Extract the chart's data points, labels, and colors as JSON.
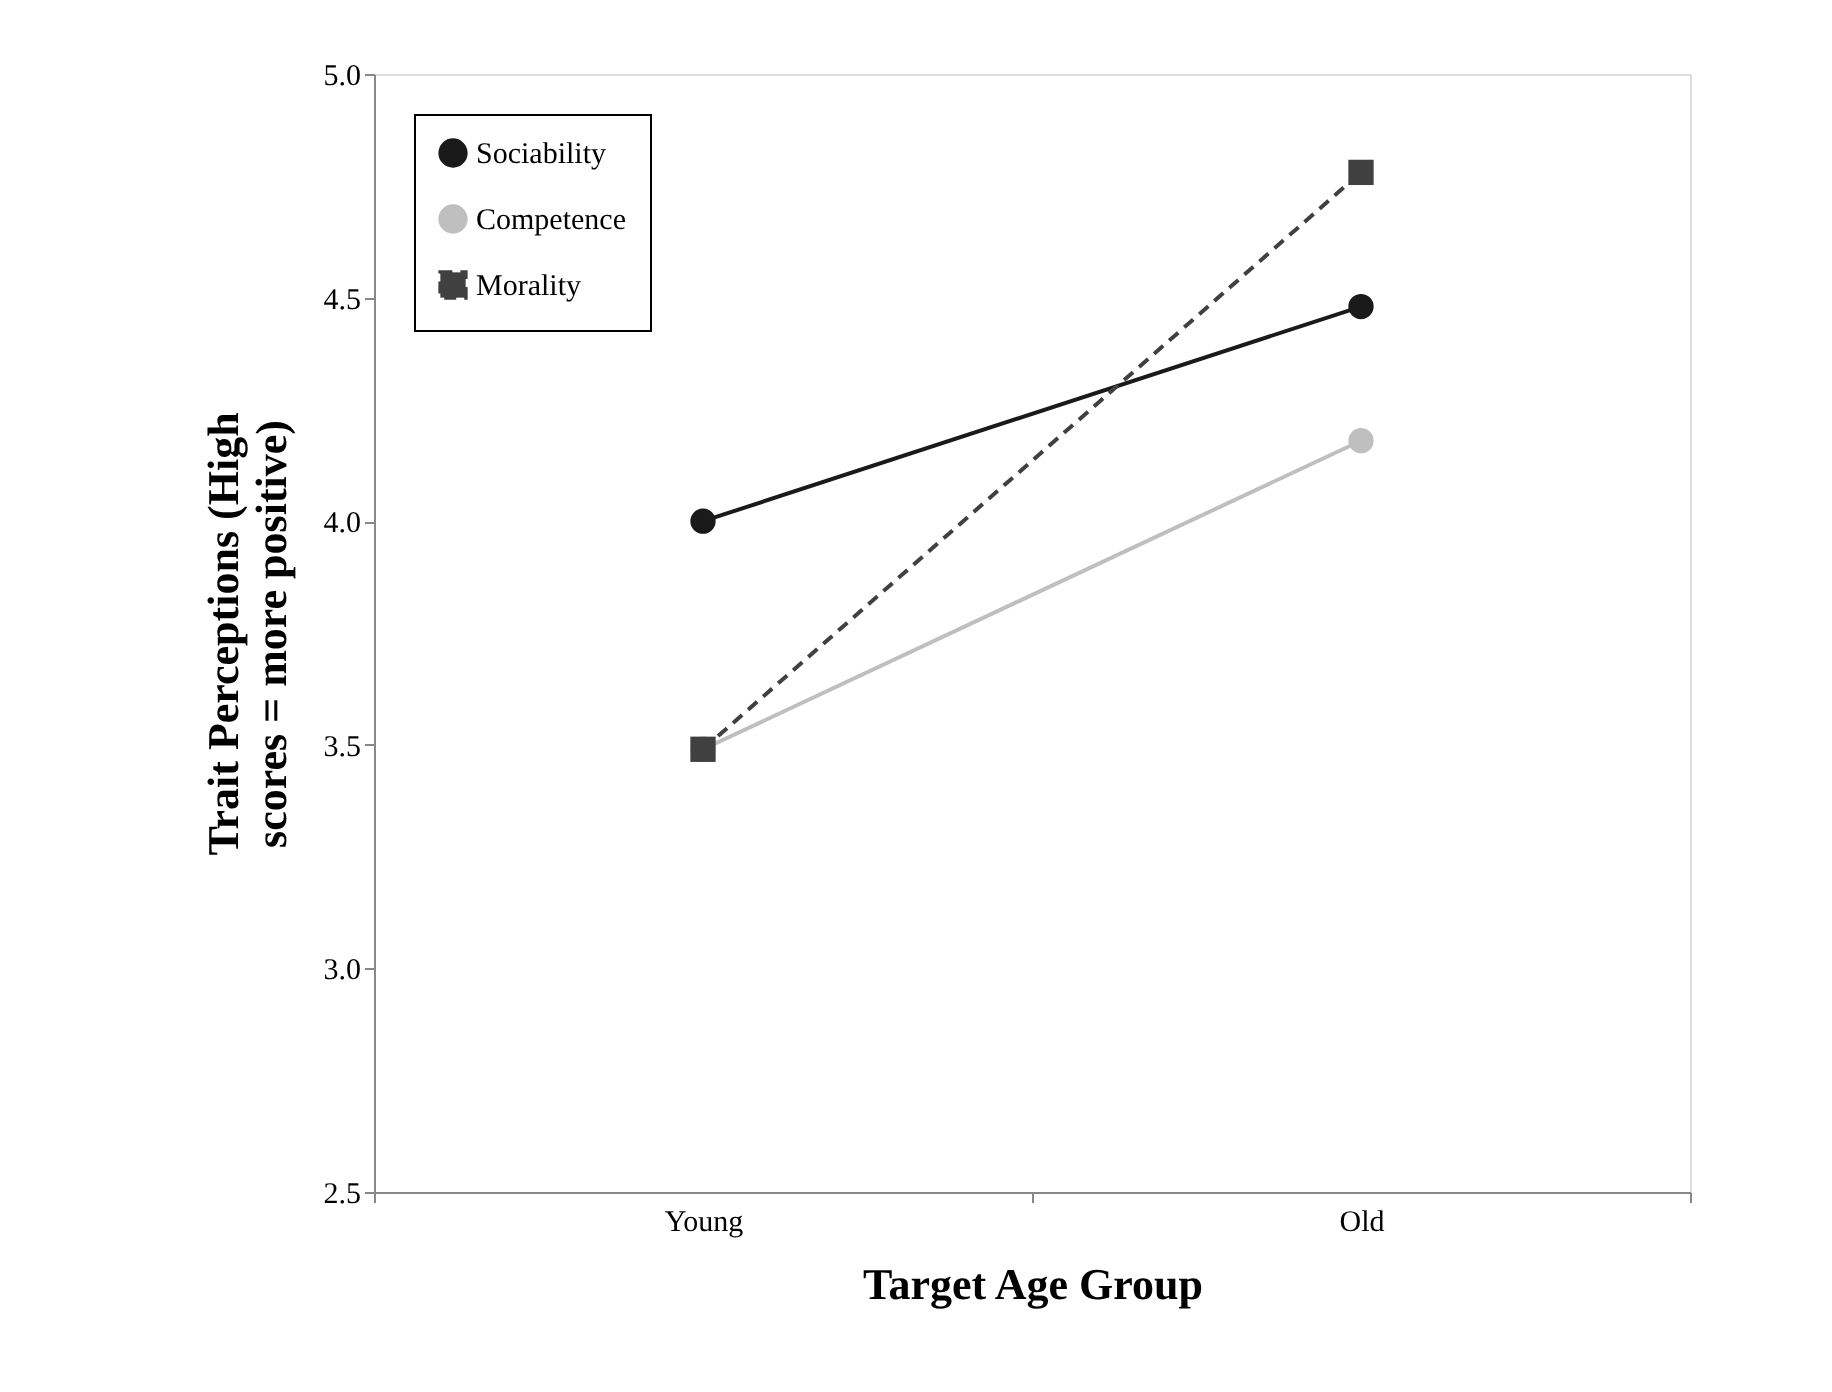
{
  "chart_data": {
    "type": "line",
    "xlabel": "Target Age Group",
    "ylabel": "Trait Perceptions (High scores = more positive)",
    "categories": [
      "Young",
      "Old"
    ],
    "series": [
      {
        "name": "Sociability",
        "color": "#1a1a1a",
        "values": [
          4.0,
          4.48
        ],
        "marker": "circle",
        "line_style": "solid"
      },
      {
        "name": "Competence",
        "color": "#bfbfbf",
        "values": [
          3.49,
          4.18
        ],
        "marker": "circle",
        "line_style": "solid"
      },
      {
        "name": "Morality",
        "color": "#404040",
        "values": [
          3.49,
          4.78
        ],
        "marker": "square",
        "line_style": "dashed"
      }
    ],
    "ylim": [
      2.5,
      5.0
    ],
    "yticks": [
      2.5,
      {
        "value": 3,
        "label": "3.0"
      },
      3.5,
      {
        "value": 4,
        "label": "4.0"
      },
      4.5,
      {
        "value": 5,
        "label": "5.0"
      }
    ],
    "grid": false,
    "legend": "top left"
  }
}
